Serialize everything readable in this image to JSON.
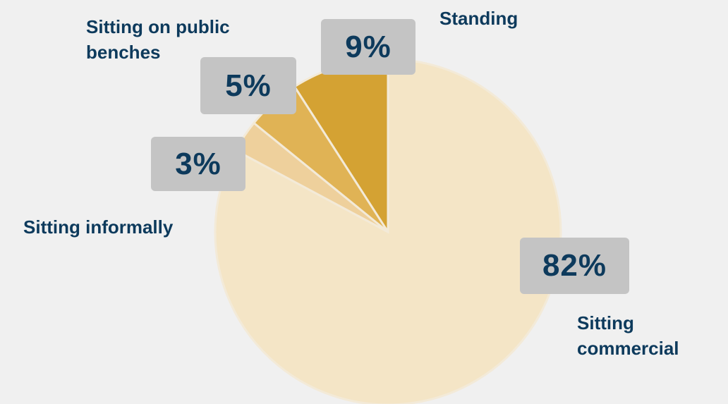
{
  "chart_data": {
    "type": "pie",
    "title": "",
    "slices": [
      {
        "label": "Standing",
        "value": 9,
        "value_label": "9%",
        "color": "#d4a233"
      },
      {
        "label": "Sitting on public benches",
        "value": 5,
        "value_label": "5%",
        "color": "#e0b355"
      },
      {
        "label": "Sitting informally",
        "value": 3,
        "value_label": "3%",
        "color": "#eed09c"
      },
      {
        "label": "Sitting commercial",
        "value": 82,
        "value_label": "82%",
        "color": "#f4e5c6"
      }
    ]
  }
}
